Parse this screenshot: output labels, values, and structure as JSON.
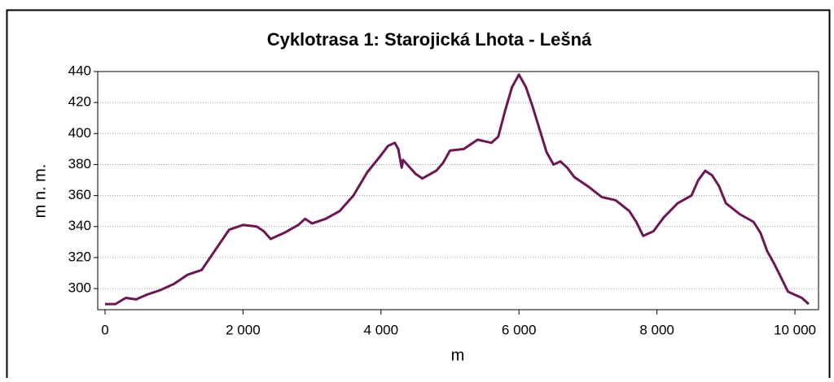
{
  "chart_data": {
    "type": "line",
    "title": "Cyklotrasa 1: Starojická Lhota - Lešná",
    "x_label": "m",
    "y_label": "m n. m.",
    "xlim": [
      -106,
      10342
    ],
    "ylim": [
      286.4,
      440
    ],
    "xticks": [
      0,
      {
        "value": 2000,
        "label": "2 000"
      },
      {
        "value": 4000,
        "label": "4 000"
      },
      {
        "value": 6000,
        "label": "6 000"
      },
      {
        "value": 8000,
        "label": "8 000"
      },
      {
        "value": 10000,
        "label": "10 000"
      }
    ],
    "yticks": [
      300,
      320,
      340,
      360,
      380,
      400,
      420,
      440
    ],
    "grid": true,
    "series": [
      {
        "color": "#6e1654",
        "x": [
          0,
          150,
          300,
          450,
          600,
          800,
          1000,
          1200,
          1400,
          1600,
          1800,
          2000,
          2200,
          2300,
          2400,
          2600,
          2800,
          2900,
          3000,
          3200,
          3400,
          3600,
          3800,
          4000,
          4100,
          4200,
          4250,
          4300,
          4320,
          4500,
          4600,
          4800,
          4900,
          5000,
          5200,
          5400,
          5600,
          5700,
          5800,
          5900,
          6000,
          6100,
          6200,
          6400,
          6500,
          6600,
          6700,
          6800,
          7000,
          7200,
          7400,
          7600,
          7700,
          7800,
          7950,
          8100,
          8300,
          8500,
          8600,
          8700,
          8800,
          8900,
          9000,
          9200,
          9400,
          9500,
          9600,
          9700,
          9800,
          9900,
          10000,
          10100,
          10200
        ],
        "values": [
          290,
          290,
          294,
          293,
          296,
          299,
          303,
          309,
          312,
          325,
          338,
          341,
          340,
          337,
          332,
          336,
          341,
          345,
          342,
          345,
          350,
          360,
          375,
          386,
          392,
          394,
          390,
          378,
          383,
          374,
          371,
          376,
          381,
          389,
          390,
          396,
          394,
          398,
          415,
          430,
          438,
          430,
          417,
          388,
          380,
          382,
          378,
          372,
          366,
          359,
          357,
          350,
          343,
          334,
          337,
          346,
          355,
          360,
          370,
          376,
          373,
          366,
          355,
          348,
          343,
          336,
          324,
          316,
          307,
          298,
          296,
          294,
          290
        ]
      }
    ]
  }
}
